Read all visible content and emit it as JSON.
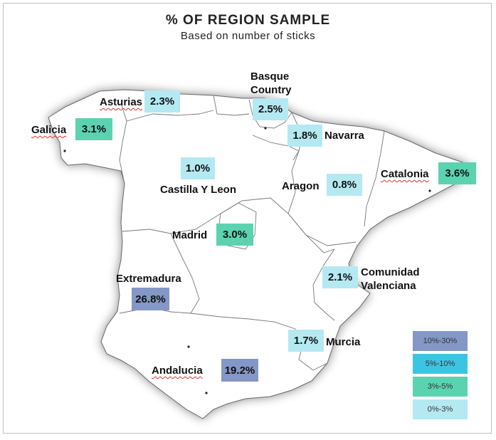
{
  "title": "% OF REGION SAMPLE",
  "subtitle": "Based on number of sticks",
  "colors": {
    "c10_30": "#8497c6",
    "c5_10": "#3ec4e3",
    "c3_5": "#5bd3b0",
    "c0_3": "#b4e9f2"
  },
  "regions": [
    {
      "name": "Galicia",
      "value": "3.1%",
      "bin": "3%-5%"
    },
    {
      "name": "Asturias",
      "value": "2.3%",
      "bin": "0%-3%"
    },
    {
      "name": "Basque Country",
      "name_line1": "Basque",
      "name_line2": "Country",
      "value": "2.5%",
      "bin": "0%-3%"
    },
    {
      "name": "Navarra",
      "value": "1.8%",
      "bin": "0%-3%"
    },
    {
      "name": "Catalonia",
      "value": "3.6%",
      "bin": "3%-5%"
    },
    {
      "name": "Castilla Y Leon",
      "value": "1.0%",
      "bin": "0%-3%"
    },
    {
      "name": "Aragon",
      "value": "0.8%",
      "bin": "0%-3%"
    },
    {
      "name": "Madrid",
      "value": "3.0%",
      "bin": "3%-5%"
    },
    {
      "name": "Extremadura",
      "value": "26.8%",
      "bin": "10%-30%"
    },
    {
      "name": "Comunidad Valenciana",
      "name_line1": "Comunidad",
      "name_line2": "Valenciana",
      "value": "2.1%",
      "bin": "0%-3%"
    },
    {
      "name": "Murcia",
      "value": "1.7%",
      "bin": "0%-3%"
    },
    {
      "name": "Andalucia",
      "value": "19.2%",
      "bin": "10%-30%"
    }
  ],
  "legend": [
    {
      "label": "10%-30%",
      "color": "#8497c6"
    },
    {
      "label": "5%-10%",
      "color": "#3ec4e3"
    },
    {
      "label": "3%-5%",
      "color": "#5bd3b0"
    },
    {
      "label": "0%-3%",
      "color": "#b4e9f2"
    }
  ]
}
